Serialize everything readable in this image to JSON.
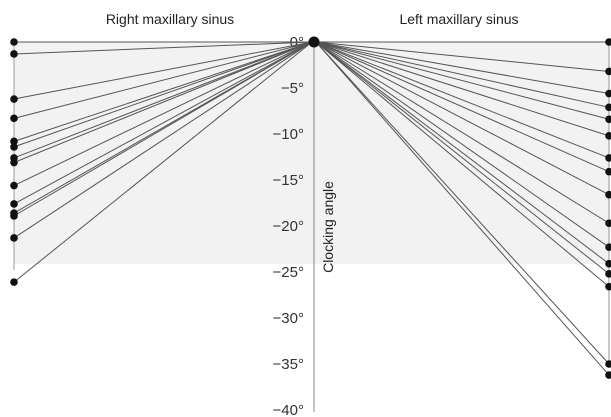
{
  "chart_data": {
    "type": "line",
    "title": "",
    "panel_titles": [
      "Right maxillary sinus",
      "Left maxillary sinus"
    ],
    "ylabel": "Clocking angle",
    "ylim": [
      -40,
      0
    ],
    "y_ticks": [
      0,
      -5,
      -10,
      -15,
      -20,
      -25,
      -30,
      -35,
      -40
    ],
    "y_tick_labels": [
      "0°",
      "−5°",
      "−10°",
      "−15°",
      "−20°",
      "−25°",
      "−30°",
      "−35°",
      "−40°"
    ],
    "grid": false,
    "legend": "none",
    "series": [
      {
        "side": "Right maxillary sinus",
        "from": 0,
        "values": [
          0,
          -1.3,
          -6.2,
          -8.3,
          -10.8,
          -11.4,
          -12.6,
          -13.1,
          -15.6,
          -17.6,
          -18.6,
          -18.9,
          -21.3,
          -26.1
        ]
      },
      {
        "side": "Left maxillary sinus",
        "from": 0,
        "values": [
          0,
          -3.2,
          -5.6,
          -7.1,
          -8.4,
          -10.2,
          -12.6,
          -14.1,
          -16.6,
          -19.7,
          -22.3,
          -24.1,
          -25.2,
          -26.6,
          -35.0,
          -36.2
        ]
      }
    ],
    "colors": {
      "line": "#555555",
      "marker": "#111111",
      "axis": "#888888",
      "panel": "#f2f2f2"
    }
  }
}
